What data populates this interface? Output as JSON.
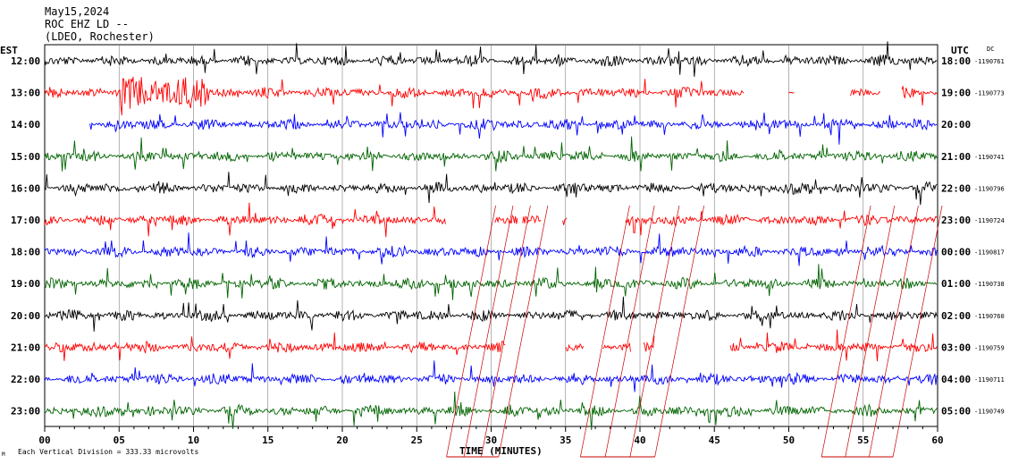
{
  "header": {
    "date": "May15,2024",
    "station": "ROC EHZ LD --",
    "network": "(LDEO, Rochester)"
  },
  "left_zone": "EST",
  "right_zone": "UTC",
  "dc_label": "DC",
  "footer": {
    "scale_note": "Each Vertical Division =  333.33 microvolts",
    "corner_mark": "M"
  },
  "colors": {
    "cycle": [
      "#000000",
      "#ff0000",
      "#0000ff",
      "#006400"
    ],
    "grid": "#808080",
    "annotation": "#cc0000"
  },
  "chart_data": {
    "type": "line",
    "xlabel": "TIME (MINUTES)",
    "xlim": [
      0,
      60
    ],
    "x_ticks": [
      "00",
      "05",
      "10",
      "15",
      "20",
      "25",
      "30",
      "35",
      "40",
      "45",
      "50",
      "55",
      "60"
    ],
    "x_tick_values": [
      0,
      5,
      10,
      15,
      20,
      25,
      30,
      35,
      40,
      45,
      50,
      55,
      60
    ],
    "rows": [
      {
        "left": "12:00",
        "right": "18:00",
        "dc": "-1190761",
        "start_min": 0,
        "gaps": []
      },
      {
        "left": "13:00",
        "right": "19:00",
        "dc": "-1190773",
        "start_min": 0,
        "gaps": [
          [
            47,
            50
          ],
          [
            50.4,
            54.1
          ],
          [
            56.2,
            57.6
          ]
        ]
      },
      {
        "left": "14:00",
        "right": "20:00",
        "dc": "",
        "start_min": 3,
        "gaps": []
      },
      {
        "left": "15:00",
        "right": "21:00",
        "dc": "-1190741",
        "start_min": 0,
        "gaps": []
      },
      {
        "left": "16:00",
        "right": "22:00",
        "dc": "-1190796",
        "start_min": 0,
        "gaps": []
      },
      {
        "left": "17:00",
        "right": "23:00",
        "dc": "-1190724",
        "start_min": 0,
        "gaps": [
          [
            27,
            30.2
          ],
          [
            31.8,
            32.1
          ],
          [
            33.4,
            34.8
          ],
          [
            35.1,
            39.0
          ]
        ]
      },
      {
        "left": "18:00",
        "right": "00:00",
        "dc": "-1190817",
        "start_min": 0,
        "gaps": []
      },
      {
        "left": "19:00",
        "right": "01:00",
        "dc": "-1190738",
        "start_min": 0,
        "gaps": []
      },
      {
        "left": "20:00",
        "right": "02:00",
        "dc": "-1190760",
        "start_min": 0,
        "gaps": []
      },
      {
        "left": "21:00",
        "right": "03:00",
        "dc": "-1190759",
        "start_min": 0,
        "gaps": [
          [
            31,
            35
          ],
          [
            36.2,
            37.5
          ],
          [
            39.4,
            40.2
          ],
          [
            41,
            46
          ]
        ]
      },
      {
        "left": "22:00",
        "right": "04:00",
        "dc": "-1190711",
        "start_min": 0,
        "gaps": []
      },
      {
        "left": "23:00",
        "right": "05:00",
        "dc": "-1190749",
        "start_min": 0,
        "gaps": []
      }
    ],
    "annotation_segments": [
      [
        27,
        30.5
      ],
      [
        36,
        41
      ],
      [
        52.2,
        57
      ]
    ]
  }
}
